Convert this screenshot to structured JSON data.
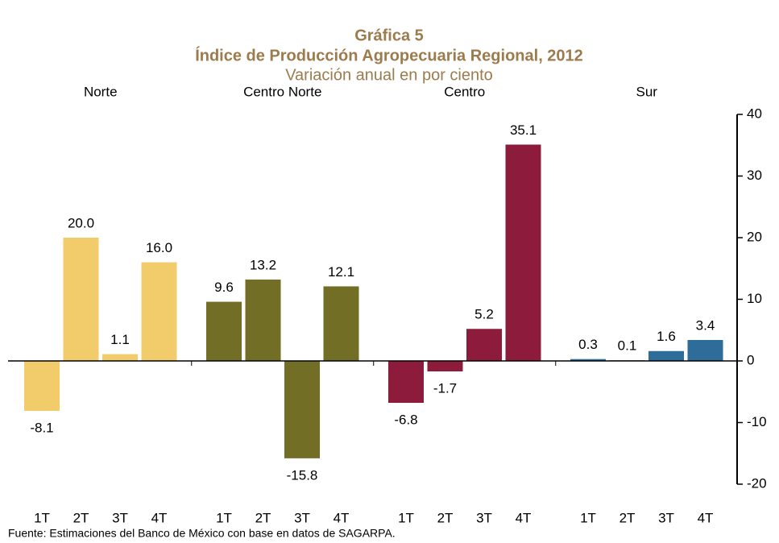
{
  "chart_data": {
    "type": "bar",
    "title": "Gráfica 5",
    "subtitle": "Índice de Producción Agropecuaria Regional, 2012",
    "unit_label": "Variación anual en por ciento",
    "source": "Fuente: Estimaciones del Banco de México con base en datos de SAGARPA.",
    "series": [
      {
        "name": "Norte",
        "color": "#f2cc6a",
        "categories": [
          "1T",
          "2T",
          "3T",
          "4T"
        ],
        "values": [
          -8.1,
          20.0,
          1.1,
          16.0
        ],
        "value_labels": [
          "-8.1",
          "20.0",
          "1.1",
          "16.0"
        ]
      },
      {
        "name": "Centro Norte",
        "color": "#736e25",
        "categories": [
          "1T",
          "2T",
          "3T",
          "4T"
        ],
        "values": [
          9.6,
          13.2,
          -15.8,
          12.1
        ],
        "value_labels": [
          "9.6",
          "13.2",
          "-15.8",
          "12.1"
        ]
      },
      {
        "name": "Centro",
        "color": "#8d1c3c",
        "categories": [
          "1T",
          "2T",
          "3T",
          "4T"
        ],
        "values": [
          -6.8,
          -1.7,
          5.2,
          35.1
        ],
        "value_labels": [
          "-6.8",
          "-1.7",
          "5.2",
          "35.1"
        ]
      },
      {
        "name": "Sur",
        "color": "#2e6c9a",
        "categories": [
          "1T",
          "2T",
          "3T",
          "4T"
        ],
        "values": [
          0.3,
          0.1,
          1.6,
          3.4
        ],
        "value_labels": [
          "0.3",
          "0.1",
          "1.6",
          "3.4"
        ]
      }
    ],
    "ylim": [
      -20,
      40
    ],
    "yticks": [
      -20,
      -10,
      0,
      10,
      20,
      30,
      40
    ]
  }
}
